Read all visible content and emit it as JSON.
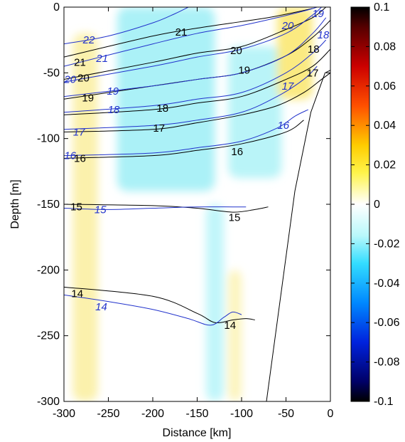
{
  "chart_data": {
    "type": "heatmap",
    "title": "",
    "xlabel": "Distance [km]",
    "ylabel": "Depth [m]",
    "xlim": [
      -300,
      0
    ],
    "ylim": [
      -300,
      0
    ],
    "xticks": [
      -300,
      -250,
      -200,
      -150,
      -100,
      -50,
      0
    ],
    "yticks": [
      0,
      -50,
      -100,
      -150,
      -200,
      -250,
      -300
    ],
    "grid": false,
    "colorbar": {
      "range": [
        -0.1,
        0.1
      ],
      "ticks": [
        "0.1",
        "0.08",
        "0.06",
        "0.04",
        "0.02",
        "0",
        "-0.02",
        "-0.04",
        "-0.06",
        "-0.08",
        "-0.1"
      ],
      "colormap": [
        "#000000",
        "#7f0000",
        "#ff0000",
        "#ff8000",
        "#ffff00",
        "#ffffff",
        "#00ffff",
        "#0080ff",
        "#0000ff",
        "#00007f",
        "#000000"
      ]
    },
    "field_patches": [
      {
        "sign": "negative",
        "color": "#a6f0f7",
        "x_range": [
          -240,
          -130
        ],
        "depth_range": [
          0,
          -140
        ]
      },
      {
        "sign": "negative",
        "color": "#b5f3f8",
        "x_range": [
          -115,
          -55
        ],
        "depth_range": [
          -30,
          -130
        ]
      },
      {
        "sign": "negative",
        "color": "#bdf5fa",
        "x_range": [
          -140,
          -120
        ],
        "depth_range": [
          -150,
          -300
        ]
      },
      {
        "sign": "positive",
        "color": "#fbf0a8",
        "x_range": [
          -290,
          -262
        ],
        "depth_range": [
          -20,
          -300
        ]
      },
      {
        "sign": "positive",
        "color": "#fbe97a",
        "x_range": [
          -60,
          -20
        ],
        "depth_range": [
          0,
          -70
        ]
      },
      {
        "sign": "positive",
        "color": "#fcf3b8",
        "x_range": [
          -115,
          -100
        ],
        "depth_range": [
          -200,
          -300
        ]
      }
    ],
    "series": [
      {
        "name": "black contours",
        "color": "#000000",
        "contours": [
          {
            "level": 21,
            "points": [
              [
                -300,
                -38
              ],
              [
                -200,
                -22
              ],
              [
                -150,
                -16
              ],
              [
                -100,
                -11
              ],
              [
                -70,
                -8
              ],
              [
                -40,
                -4
              ],
              [
                -20,
                -1
              ]
            ]
          },
          {
            "level": 20,
            "points": [
              [
                -300,
                -55
              ],
              [
                -200,
                -42
              ],
              [
                -150,
                -35
              ],
              [
                -100,
                -30
              ],
              [
                -50,
                -17
              ],
              [
                -20,
                -8
              ],
              [
                -5,
                0
              ]
            ]
          },
          {
            "level": 19,
            "points": [
              [
                -300,
                -70
              ],
              [
                -200,
                -60
              ],
              [
                -150,
                -55
              ],
              [
                -100,
                -50
              ],
              [
                -50,
                -37
              ],
              [
                -20,
                -23
              ],
              [
                0,
                -10
              ]
            ]
          },
          {
            "level": 18,
            "points": [
              [
                -300,
                -82
              ],
              [
                -200,
                -78
              ],
              [
                -150,
                -73
              ],
              [
                -100,
                -68
              ],
              [
                -50,
                -55
              ],
              [
                -20,
                -45
              ],
              [
                0,
                -32
              ]
            ]
          },
          {
            "level": 17,
            "points": [
              [
                -300,
                -95
              ],
              [
                -200,
                -93
              ],
              [
                -150,
                -88
              ],
              [
                -100,
                -82
              ],
              [
                -60,
                -75
              ],
              [
                -30,
                -65
              ],
              [
                -10,
                -55
              ],
              [
                0,
                -50
              ]
            ]
          },
          {
            "level": 16,
            "points": [
              [
                -300,
                -115
              ],
              [
                -200,
                -113
              ],
              [
                -150,
                -109
              ],
              [
                -100,
                -104
              ],
              [
                -50,
                -95
              ],
              [
                -30,
                -86
              ]
            ]
          },
          {
            "level": 15,
            "points": [
              [
                -300,
                -150
              ],
              [
                -200,
                -151
              ],
              [
                -150,
                -153
              ],
              [
                -110,
                -156
              ],
              [
                -85,
                -154
              ],
              [
                -70,
                -152
              ]
            ]
          },
          {
            "level": 14,
            "points": [
              [
                -300,
                -213
              ],
              [
                -200,
                -220
              ],
              [
                -150,
                -233
              ],
              [
                -130,
                -240
              ],
              [
                -110,
                -238
              ],
              [
                -95,
                -237
              ],
              [
                -85,
                -238
              ]
            ]
          }
        ]
      },
      {
        "name": "blue contours",
        "color": "#2233cc",
        "contours": [
          {
            "level": 22,
            "points": [
              [
                -300,
                -28
              ],
              [
                -250,
                -22
              ],
              [
                -200,
                -12
              ],
              [
                -175,
                -5
              ],
              [
                -160,
                0
              ]
            ]
          },
          {
            "level": 21,
            "points": [
              [
                -300,
                -45
              ],
              [
                -200,
                -28
              ],
              [
                -150,
                -20
              ],
              [
                -100,
                -14
              ],
              [
                -60,
                -8
              ],
              [
                -30,
                -3
              ],
              [
                -15,
                0
              ]
            ]
          },
          {
            "level": 20,
            "points": [
              [
                -300,
                -57
              ],
              [
                -200,
                -45
              ],
              [
                -150,
                -38
              ],
              [
                -100,
                -32
              ],
              [
                -50,
                -20
              ],
              [
                -20,
                -6
              ],
              [
                -10,
                0
              ]
            ]
          },
          {
            "level": 19,
            "points": [
              [
                -300,
                -68
              ],
              [
                -200,
                -60
              ],
              [
                -150,
                -55
              ],
              [
                -100,
                -50
              ],
              [
                -50,
                -37
              ],
              [
                -20,
                -20
              ],
              [
                -5,
                -8
              ]
            ]
          },
          {
            "level": 18,
            "points": [
              [
                -300,
                -80
              ],
              [
                -200,
                -75
              ],
              [
                -150,
                -70
              ],
              [
                -100,
                -65
              ],
              [
                -50,
                -50
              ],
              [
                -20,
                -35
              ],
              [
                -5,
                -25
              ]
            ]
          },
          {
            "level": 17,
            "points": [
              [
                -300,
                -93
              ],
              [
                -200,
                -90
              ],
              [
                -150,
                -86
              ],
              [
                -100,
                -80
              ],
              [
                -60,
                -68
              ],
              [
                -30,
                -55
              ],
              [
                -15,
                -45
              ]
            ]
          },
          {
            "level": 16,
            "points": [
              [
                -300,
                -113
              ],
              [
                -200,
                -111
              ],
              [
                -150,
                -107
              ],
              [
                -100,
                -102
              ],
              [
                -60,
                -92
              ],
              [
                -40,
                -83
              ],
              [
                -25,
                -78
              ]
            ]
          },
          {
            "level": 15,
            "points": [
              [
                -300,
                -153
              ],
              [
                -250,
                -154
              ],
              [
                -200,
                -153
              ],
              [
                -150,
                -152
              ],
              [
                -110,
                -152
              ],
              [
                -95,
                -152
              ]
            ]
          },
          {
            "level": 14,
            "points": [
              [
                -300,
                -219
              ],
              [
                -250,
                -224
              ],
              [
                -200,
                -230
              ],
              [
                -160,
                -237
              ],
              [
                -135,
                -242
              ],
              [
                -120,
                -236
              ],
              [
                -110,
                -232
              ],
              [
                -100,
                -234
              ]
            ]
          }
        ]
      }
    ],
    "contour_labels": [
      {
        "text": "22",
        "x": -272,
        "y": -25,
        "color": "#2233cc"
      },
      {
        "text": "21",
        "x": -282,
        "y": -42,
        "color": "#000000"
      },
      {
        "text": "21",
        "x": -257,
        "y": -39,
        "color": "#2233cc"
      },
      {
        "text": "21",
        "x": -168,
        "y": -19,
        "color": "#000000"
      },
      {
        "text": "20",
        "x": -293,
        "y": -55,
        "color": "#2233cc"
      },
      {
        "text": "20",
        "x": -278,
        "y": -54,
        "color": "#000000"
      },
      {
        "text": "20",
        "x": -106,
        "y": -33,
        "color": "#000000"
      },
      {
        "text": "20",
        "x": -48,
        "y": -14,
        "color": "#2233cc"
      },
      {
        "text": "19",
        "x": -273,
        "y": -69,
        "color": "#000000"
      },
      {
        "text": "19",
        "x": -245,
        "y": -64,
        "color": "#2233cc"
      },
      {
        "text": "19",
        "x": -97,
        "y": -48,
        "color": "#000000"
      },
      {
        "text": "19",
        "x": -14,
        "y": -5,
        "color": "#2233cc"
      },
      {
        "text": "18",
        "x": -244,
        "y": -78,
        "color": "#2233cc"
      },
      {
        "text": "18",
        "x": -189,
        "y": -77,
        "color": "#000000"
      },
      {
        "text": "18",
        "x": -8,
        "y": -21,
        "color": "#2233cc"
      },
      {
        "text": "18",
        "x": -19,
        "y": -32,
        "color": "#000000"
      },
      {
        "text": "17",
        "x": -283,
        "y": -95,
        "color": "#2233cc"
      },
      {
        "text": "17",
        "x": -193,
        "y": -92,
        "color": "#000000"
      },
      {
        "text": "17",
        "x": -48,
        "y": -60,
        "color": "#2233cc"
      },
      {
        "text": "17",
        "x": -20,
        "y": -50,
        "color": "#000000"
      },
      {
        "text": "16",
        "x": -293,
        "y": -113,
        "color": "#2233cc"
      },
      {
        "text": "16",
        "x": -282,
        "y": -115,
        "color": "#000000"
      },
      {
        "text": "16",
        "x": -105,
        "y": -110,
        "color": "#000000"
      },
      {
        "text": "16",
        "x": -53,
        "y": -90,
        "color": "#2233cc"
      },
      {
        "text": "15",
        "x": -286,
        "y": -152,
        "color": "#000000"
      },
      {
        "text": "15",
        "x": -259,
        "y": -154,
        "color": "#2233cc"
      },
      {
        "text": "15",
        "x": -108,
        "y": -160,
        "color": "#000000"
      },
      {
        "text": "14",
        "x": -285,
        "y": -218,
        "color": "#000000"
      },
      {
        "text": "14",
        "x": -258,
        "y": -228,
        "color": "#2233cc"
      },
      {
        "text": "14",
        "x": -113,
        "y": -242,
        "color": "#000000"
      }
    ],
    "bottom_line": {
      "color": "#000000",
      "points": [
        [
          -72,
          -300
        ],
        [
          -60,
          -240
        ],
        [
          -40,
          -140
        ],
        [
          -22,
          -80
        ],
        [
          -6,
          -50
        ],
        [
          0,
          -48
        ]
      ]
    }
  }
}
